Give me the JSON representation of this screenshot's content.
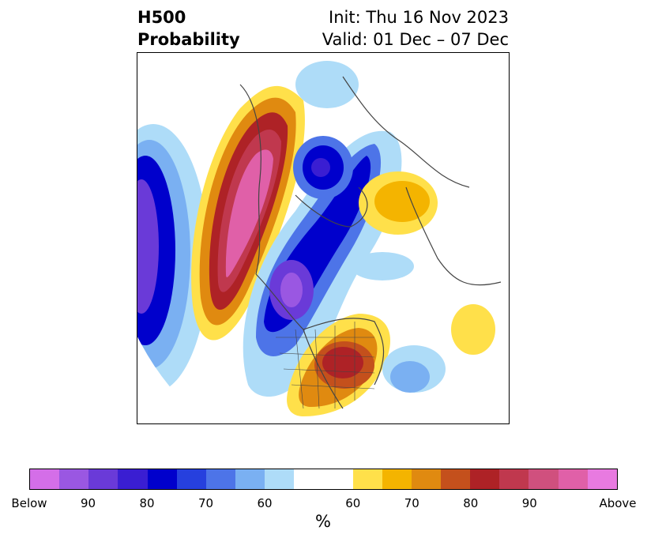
{
  "title": {
    "left_line1": "H500",
    "left_line2": "Probability",
    "init": "Init: Thu 16 Nov 2023",
    "valid": "Valid: 01 Dec – 07 Dec"
  },
  "colorbar": {
    "unit_label": "%",
    "segments": [
      "#d46ee8",
      "#9a57e2",
      "#6a3ad8",
      "#3a1ed2",
      "#0000cc",
      "#2640de",
      "#4d74e8",
      "#7ab0f2",
      "#aedcf8",
      "#ffffff",
      "#ffe04a",
      "#f4b400",
      "#e08a10",
      "#c4501c",
      "#ae2226",
      "#c0384e",
      "#d0507e",
      "#e060a8",
      "#e87ae0"
    ],
    "tick_labels": [
      "Below",
      "90",
      "80",
      "70",
      "60",
      "60",
      "70",
      "80",
      "90",
      "Above"
    ]
  },
  "map": {
    "colors": {
      "below_90": "#9a57e2",
      "below_80": "#3a1ed2",
      "below_70": "#0000cc",
      "below_65": "#2640de",
      "below_60": "#4d74e8",
      "below_55": "#7ab0f2",
      "below_50": "#aedcf8",
      "above_50": "#ffe04a",
      "above_55": "#f4b400",
      "above_60": "#e08a10",
      "above_65": "#c4501c",
      "above_70": "#ae2226",
      "above_75": "#c0384e",
      "above_80": "#d0507e",
      "above_85": "#e060a8",
      "coast": "#444444"
    }
  }
}
